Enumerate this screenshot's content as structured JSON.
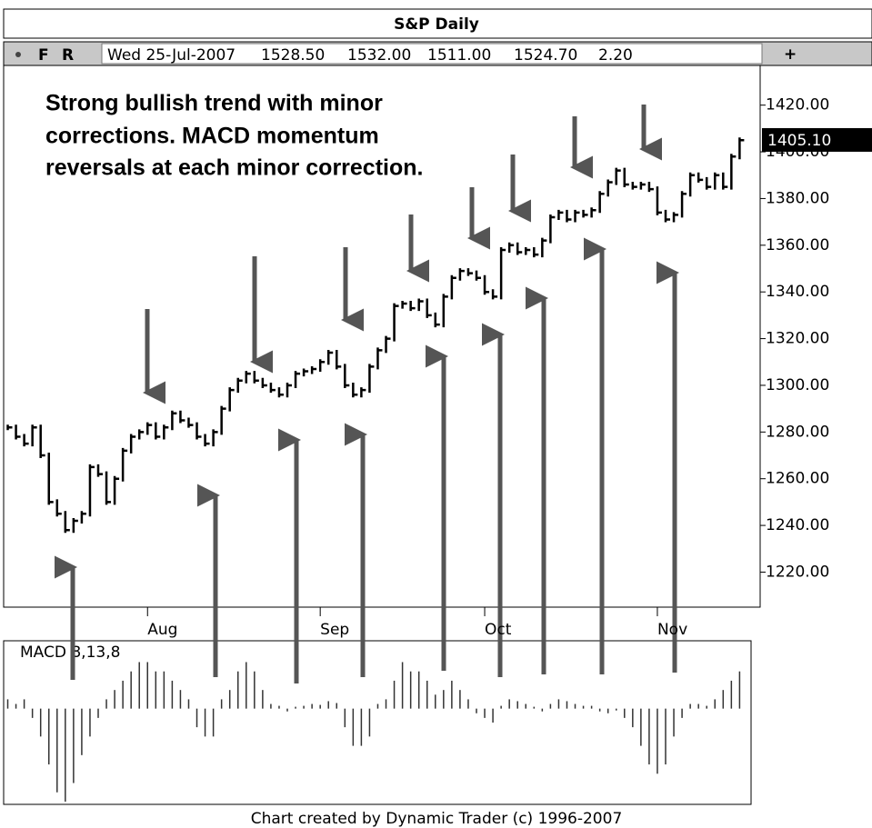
{
  "chart_data": {
    "type": "stock",
    "title": "S&P Daily",
    "annotation": [
      "Strong bullish trend with minor",
      "corrections. MACD momentum",
      "reversals at each minor correction."
    ],
    "color": "#000000",
    "values": [
      1282,
      1278,
      1275,
      1282,
      1270,
      1250,
      1245,
      1238,
      1242,
      1245,
      1265,
      1262,
      1250,
      1260,
      1272,
      1278,
      1280,
      1283,
      1278,
      1282,
      1288,
      1285,
      1283,
      1278,
      1275,
      1280,
      1290,
      1298,
      1302,
      1305,
      1302,
      1300,
      1298,
      1296,
      1300,
      1305,
      1306,
      1307,
      1310,
      1314,
      1308,
      1300,
      1296,
      1298,
      1308,
      1315,
      1320,
      1334,
      1335,
      1333,
      1336,
      1330,
      1326,
      1338,
      1346,
      1349,
      1348,
      1346,
      1340,
      1338,
      1358,
      1360,
      1357,
      1358,
      1356,
      1362,
      1372,
      1374,
      1371,
      1374,
      1373,
      1375,
      1382,
      1387,
      1392,
      1386,
      1385,
      1386,
      1384,
      1374,
      1371,
      1373,
      1382,
      1390,
      1388,
      1385,
      1390,
      1385,
      1398,
      1405
    ],
    "xlim": [
      -0.5,
      91.5
    ],
    "xticks": [
      {
        "value": 17,
        "label": "Aug"
      },
      {
        "value": 38,
        "label": "Sep"
      },
      {
        "value": 58,
        "label": "Oct"
      },
      {
        "value": 79,
        "label": "Nov"
      }
    ],
    "ylim": [
      1205,
      1437
    ],
    "yticks": [
      {
        "value": 1220,
        "label": "1220.00"
      },
      {
        "value": 1240,
        "label": "1240.00"
      },
      {
        "value": 1260,
        "label": "1260.00"
      },
      {
        "value": 1280,
        "label": "1280.00"
      },
      {
        "value": 1300,
        "label": "1300.00"
      },
      {
        "value": 1320,
        "label": "1320.00"
      },
      {
        "value": 1340,
        "label": "1340.00"
      },
      {
        "value": 1360,
        "label": "1360.00"
      },
      {
        "value": 1380,
        "label": "1380.00"
      },
      {
        "value": 1400,
        "label": "1400.00"
      },
      {
        "value": 1420,
        "label": "1420.00"
      }
    ],
    "last_price": {
      "value": 1405.1,
      "label": "1405.10"
    },
    "macd": {
      "label": "MACD 8,13,8",
      "color": "#333333",
      "ylim": [
        -10,
        7
      ],
      "values": [
        1,
        0.5,
        1,
        -1,
        -3,
        -6,
        -9,
        -10,
        -8,
        -5,
        -3,
        -1,
        1,
        2,
        3,
        4,
        5,
        5,
        4,
        4,
        3,
        2,
        1,
        -2,
        -3,
        -3,
        1,
        2,
        4,
        5,
        4,
        2,
        0.5,
        0.3,
        -0.3,
        0.2,
        0.3,
        0.5,
        0.4,
        0.8,
        0.6,
        -2,
        -4,
        -4,
        -3,
        0.5,
        1,
        3,
        5,
        4,
        4,
        3,
        1.5,
        2,
        3,
        2,
        1,
        -0.5,
        -1,
        -1.5,
        0.3,
        1,
        0.8,
        0.5,
        0.2,
        -0.3,
        0.5,
        1,
        0.8,
        0.5,
        0.3,
        0.3,
        -0.3,
        -0.5,
        -0.2,
        -1,
        -2,
        -4,
        -6,
        -7,
        -6,
        -3,
        -1,
        0.5,
        0.5,
        0.3,
        1,
        2,
        3,
        4
      ]
    }
  },
  "toolbar": {
    "buttons": [
      "F",
      "R"
    ],
    "fields": [
      "Wed 25-Jul-2007",
      "1528.50",
      "1532.00",
      "1511.00",
      "1524.70",
      "2.20"
    ],
    "add": "+"
  },
  "footer": "Chart created by Dynamic Trader  (c) 1996-2007"
}
